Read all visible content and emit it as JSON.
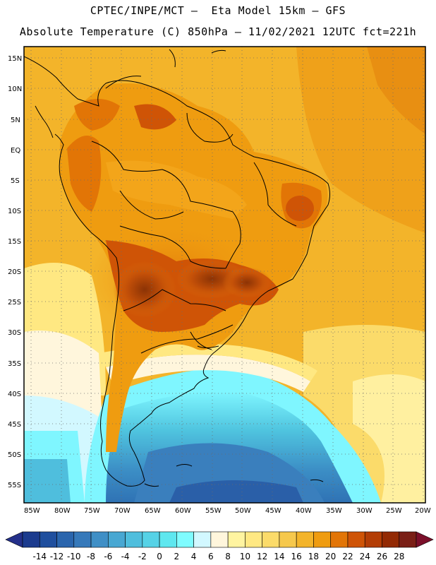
{
  "title_line1": "CPTEC/INPE/MCT –  Eta Model 15km – GFS",
  "title_line2": "Absolute Temperature (C) 850hPa – 11/02/2021 12UTC fct=221h",
  "lat_labels": [
    "15N",
    "10N",
    "5N",
    "EQ",
    "5S",
    "10S",
    "15S",
    "20S",
    "25S",
    "30S",
    "35S",
    "40S",
    "45S",
    "50S",
    "55S"
  ],
  "lon_labels": [
    "85W",
    "80W",
    "75W",
    "70W",
    "65W",
    "60W",
    "55W",
    "50W",
    "45W",
    "40W",
    "35W",
    "30W",
    "25W",
    "20W"
  ],
  "colorbar": {
    "ticks": [
      "-14",
      "-12",
      "-10",
      "-8",
      "-6",
      "-4",
      "-2",
      "0",
      "2",
      "4",
      "6",
      "8",
      "10",
      "12",
      "14",
      "16",
      "18",
      "20",
      "22",
      "24",
      "26",
      "28"
    ],
    "colors": [
      "#1b3b8e",
      "#1f4f9e",
      "#2a65ad",
      "#3679ba",
      "#3f8fc6",
      "#48a7d2",
      "#4fbedd",
      "#56d2e6",
      "#5ee7ef",
      "#7ffcff",
      "#d2f8ff",
      "#fff6dc",
      "#fff4a0",
      "#ffe882",
      "#fbdb6a",
      "#f6c84c",
      "#f3b42a",
      "#ef9c10",
      "#e27506",
      "#cf5406",
      "#b33d05",
      "#932a04",
      "#7a1f16"
    ]
  }
}
